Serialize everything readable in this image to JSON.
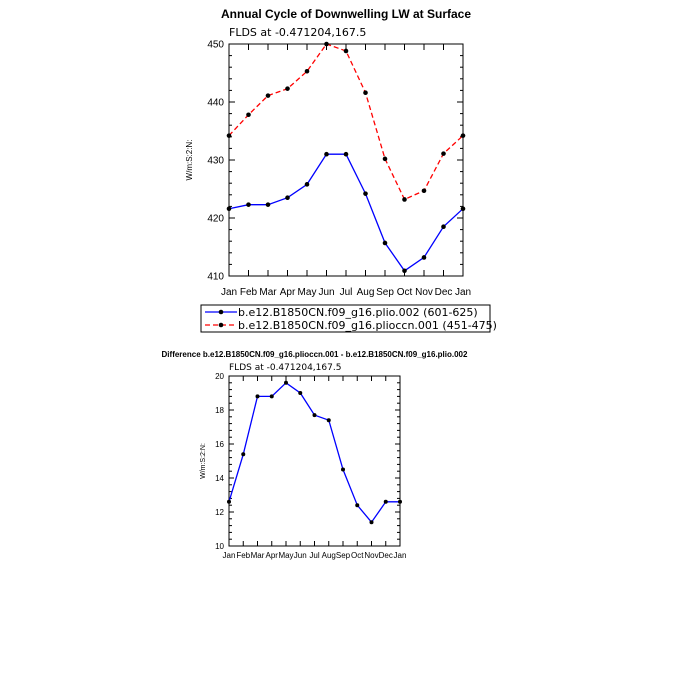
{
  "colors": {
    "control": "#0000ff",
    "pliocene": "#ff0000",
    "axis": "#000000"
  },
  "chart_data": [
    {
      "type": "line",
      "title": "Annual Cycle of Downwelling LW at Surface",
      "subtitle": "FLDS at -0.471204,167.5",
      "ylabel": "W/m:S:2:N:",
      "xlabel": "",
      "categories": [
        "Jan",
        "Feb",
        "Mar",
        "Apr",
        "May",
        "Jun",
        "Jul",
        "Aug",
        "Sep",
        "Oct",
        "Nov",
        "Dec",
        "Jan"
      ],
      "ylim": [
        410,
        450
      ],
      "yticks": [
        "410",
        "420",
        "430",
        "440",
        "450"
      ],
      "legend_position": "bottom",
      "series": [
        {
          "name": "b.e12.B1850CN.f09_g16.plio.002 (601-625)",
          "color": "#0000ff",
          "dash": "solid",
          "values": [
            421.6,
            422.3,
            422.3,
            423.5,
            425.8,
            431.0,
            431.0,
            424.2,
            415.7,
            410.9,
            413.2,
            418.5,
            421.6
          ]
        },
        {
          "name": "b.e12.B1850CN.f09_g16.plioccn.001 (451-475)",
          "color": "#ff0000",
          "dash": "dashed",
          "values": [
            434.2,
            437.8,
            441.1,
            442.3,
            445.3,
            450.0,
            448.8,
            441.6,
            430.2,
            423.2,
            424.7,
            431.1,
            434.2
          ]
        }
      ]
    },
    {
      "type": "line",
      "title": "Difference b.e12.B1850CN.f09_g16.plioccn.001 - b.e12.B1850CN.f09_g16.plio.002",
      "subtitle": "FLDS at -0.471204,167.5",
      "ylabel": "W/m:S:2:N:",
      "xlabel": "",
      "categories": [
        "Jan",
        "Feb",
        "Mar",
        "Apr",
        "May",
        "Jun",
        "Jul",
        "Aug",
        "Sep",
        "Oct",
        "Nov",
        "Dec",
        "Jan"
      ],
      "ylim": [
        10,
        20
      ],
      "yticks": [
        "10",
        "12",
        "14",
        "16",
        "18",
        "20"
      ],
      "series": [
        {
          "color": "#0000ff",
          "dash": "solid",
          "values": [
            12.6,
            15.4,
            18.8,
            18.8,
            19.6,
            19.0,
            17.7,
            17.4,
            14.5,
            12.4,
            11.4,
            12.6,
            12.6
          ]
        }
      ]
    }
  ]
}
